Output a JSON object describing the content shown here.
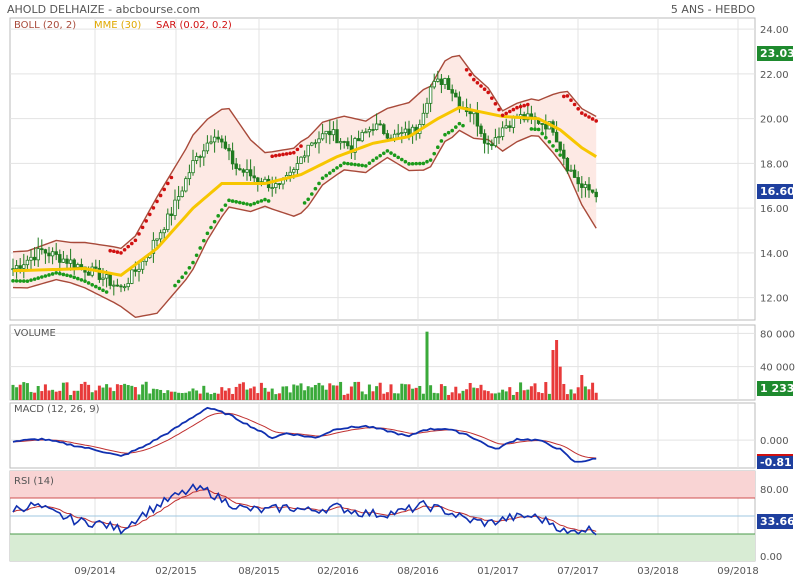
{
  "header": {
    "left_title": "AHOLD DELHAIZE - abcbourse.com",
    "right_title": "5 ANS - HEBDO"
  },
  "colors": {
    "boll": "#a84a3a",
    "boll_fill": "#fde9e4",
    "mme": "#f7c600",
    "sar_green": "#1a9a1a",
    "sar_red": "#d01010",
    "candle": "#1f7a1f",
    "volume_up": "#3aaa3a",
    "volume_down": "#e83a3a",
    "macd": "#1030b0",
    "signal": "#c03030",
    "rsi_line": "#1030b0",
    "rsi_signal": "#c03030",
    "rsi_over": "#f9d4d4",
    "rsi_under": "#d8ecd4",
    "price_badge_up": "#1e8a2e",
    "price_badge_last": "#1e3f9e"
  },
  "chart_data": [
    {
      "id": "price",
      "type": "line",
      "legend": [
        {
          "label": "BOLL (20, 2)",
          "color": "#a84a3a"
        },
        {
          "label": "MME (30)",
          "color": "#f7c600"
        },
        {
          "label": "SAR (0.02, 0.2)",
          "color": "#d01010"
        }
      ],
      "y_ticks": [
        "24.00",
        "22.00",
        "20.00",
        "18.00",
        "16.00",
        "14.00",
        "12.00"
      ],
      "ylim": [
        11.0,
        24.5
      ],
      "badges": {
        "high": "23.03",
        "last": "16.60"
      },
      "x_ticks": [
        "09/2014",
        "02/2015",
        "08/2015",
        "02/2016",
        "08/2016",
        "01/2017",
        "07/2017",
        "03/2018",
        "09/2018"
      ],
      "close_keyframes": [
        [
          0,
          13.3
        ],
        [
          8,
          14.1
        ],
        [
          16,
          13.6
        ],
        [
          24,
          13.0
        ],
        [
          30,
          12.4
        ],
        [
          36,
          13.6
        ],
        [
          44,
          15.8
        ],
        [
          50,
          18.0
        ],
        [
          56,
          19.4
        ],
        [
          62,
          17.8
        ],
        [
          68,
          17.3
        ],
        [
          74,
          16.9
        ],
        [
          78,
          17.6
        ],
        [
          82,
          18.9
        ],
        [
          88,
          19.4
        ],
        [
          94,
          18.7
        ],
        [
          100,
          19.7
        ],
        [
          106,
          19.2
        ],
        [
          112,
          19.5
        ],
        [
          116,
          21.4
        ],
        [
          120,
          21.8
        ],
        [
          124,
          20.7
        ],
        [
          128,
          20.2
        ],
        [
          132,
          18.8
        ],
        [
          136,
          19.6
        ],
        [
          140,
          20.1
        ],
        [
          146,
          19.9
        ],
        [
          150,
          19.6
        ],
        [
          154,
          17.9
        ],
        [
          158,
          16.9
        ],
        [
          162,
          16.7
        ]
      ],
      "mme_keyframes": [
        [
          0,
          13.2
        ],
        [
          20,
          13.3
        ],
        [
          30,
          13.0
        ],
        [
          40,
          14.2
        ],
        [
          50,
          16.0
        ],
        [
          58,
          17.1
        ],
        [
          70,
          17.1
        ],
        [
          80,
          17.5
        ],
        [
          90,
          18.3
        ],
        [
          100,
          18.9
        ],
        [
          110,
          19.2
        ],
        [
          118,
          20.0
        ],
        [
          124,
          20.5
        ],
        [
          136,
          20.1
        ],
        [
          146,
          20.0
        ],
        [
          152,
          19.5
        ],
        [
          158,
          18.7
        ],
        [
          162,
          18.3
        ]
      ],
      "boll_width_keyframes": [
        [
          0,
          0.8
        ],
        [
          16,
          0.9
        ],
        [
          30,
          1.3
        ],
        [
          40,
          2.6
        ],
        [
          50,
          3.0
        ],
        [
          58,
          2.4
        ],
        [
          70,
          1.2
        ],
        [
          80,
          1.6
        ],
        [
          92,
          1.2
        ],
        [
          104,
          1.1
        ],
        [
          114,
          1.8
        ],
        [
          122,
          1.8
        ],
        [
          136,
          0.9
        ],
        [
          146,
          0.8
        ],
        [
          154,
          1.8
        ],
        [
          162,
          2.5
        ]
      ]
    },
    {
      "id": "volume",
      "type": "bar",
      "title": "VOLUME",
      "y_ticks": [
        "80 000",
        "40 000"
      ],
      "ylim": [
        0,
        90000
      ],
      "badge": "1 233",
      "spikes": [
        [
          115,
          82000
        ],
        [
          150,
          60000
        ],
        [
          151,
          72000
        ],
        [
          152,
          40000
        ],
        [
          158,
          30000
        ]
      ]
    },
    {
      "id": "macd",
      "type": "line",
      "title": "MACD (12, 26, 9)",
      "y_ticks": [
        "0.000"
      ],
      "ylim": [
        -1.2,
        1.6
      ],
      "badge": "-0.811",
      "macd_keyframes": [
        [
          0,
          -0.05
        ],
        [
          8,
          0.05
        ],
        [
          16,
          -0.2
        ],
        [
          24,
          -0.45
        ],
        [
          30,
          -0.7
        ],
        [
          36,
          -0.3
        ],
        [
          44,
          0.4
        ],
        [
          50,
          1.0
        ],
        [
          54,
          1.4
        ],
        [
          60,
          1.1
        ],
        [
          66,
          0.6
        ],
        [
          72,
          0.1
        ],
        [
          76,
          0.3
        ],
        [
          84,
          0.1
        ],
        [
          90,
          0.5
        ],
        [
          98,
          0.6
        ],
        [
          104,
          0.4
        ],
        [
          110,
          0.15
        ],
        [
          114,
          0.45
        ],
        [
          120,
          0.5
        ],
        [
          126,
          0.25
        ],
        [
          134,
          -0.4
        ],
        [
          140,
          0.05
        ],
        [
          146,
          0.0
        ],
        [
          152,
          -0.4
        ],
        [
          156,
          -0.95
        ],
        [
          162,
          -0.81
        ]
      ]
    },
    {
      "id": "rsi",
      "type": "line",
      "title": "RSI (14)",
      "y_ticks": [
        "80.00",
        "33.66",
        "0.00"
      ],
      "ylim": [
        0,
        100
      ],
      "zones": {
        "overbought": 70,
        "oversold": 30,
        "mid": 50
      },
      "badge": "33.66",
      "rsi_keyframes": [
        [
          0,
          58
        ],
        [
          6,
          62
        ],
        [
          12,
          52
        ],
        [
          18,
          44
        ],
        [
          24,
          42
        ],
        [
          30,
          35
        ],
        [
          36,
          52
        ],
        [
          44,
          70
        ],
        [
          50,
          80
        ],
        [
          54,
          78
        ],
        [
          58,
          68
        ],
        [
          64,
          58
        ],
        [
          70,
          56
        ],
        [
          76,
          60
        ],
        [
          82,
          56
        ],
        [
          90,
          60
        ],
        [
          96,
          54
        ],
        [
          102,
          52
        ],
        [
          108,
          55
        ],
        [
          114,
          62
        ],
        [
          120,
          56
        ],
        [
          126,
          46
        ],
        [
          132,
          42
        ],
        [
          138,
          48
        ],
        [
          144,
          50
        ],
        [
          150,
          42
        ],
        [
          154,
          30
        ],
        [
          158,
          36
        ],
        [
          162,
          34
        ]
      ]
    }
  ]
}
